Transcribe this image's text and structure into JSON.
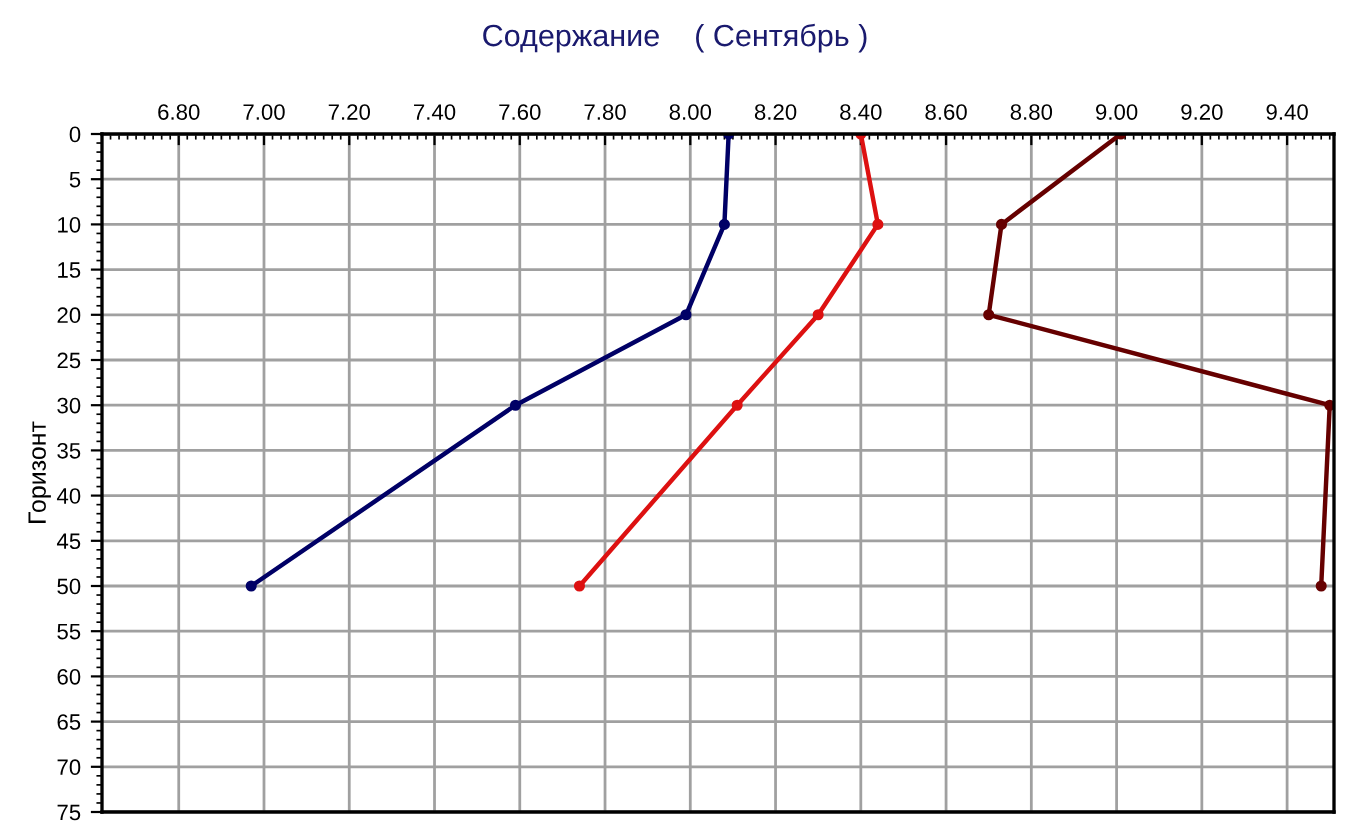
{
  "chart_data": {
    "type": "line",
    "title": "Содержание    ( Сентябрь )",
    "ylabel": "Горизонт",
    "series": [
      {
        "color": "#000066",
        "x": [
          8.09,
          8.08,
          7.99,
          7.59,
          6.97
        ],
        "values": [
          0,
          10,
          20,
          30,
          50
        ]
      },
      {
        "color": "#dd1111",
        "x": [
          8.4,
          8.44,
          8.3,
          8.11,
          7.74
        ],
        "values": [
          0,
          10,
          20,
          30,
          50
        ]
      },
      {
        "color": "#660000",
        "x": [
          9.01,
          8.73,
          8.7,
          9.5,
          9.48
        ],
        "values": [
          0,
          10,
          20,
          30,
          50
        ]
      }
    ],
    "xlim": [
      6.62,
      9.51
    ],
    "xticks": [
      {
        "value": 6.8,
        "label": "6.80"
      },
      {
        "value": 7.0,
        "label": "7.00"
      },
      {
        "value": 7.2,
        "label": "7.20"
      },
      {
        "value": 7.4,
        "label": "7.40"
      },
      {
        "value": 7.6,
        "label": "7.60"
      },
      {
        "value": 7.8,
        "label": "7.80"
      },
      {
        "value": 8.0,
        "label": "8.00"
      },
      {
        "value": 8.2,
        "label": "8.20"
      },
      {
        "value": 8.4,
        "label": "8.40"
      },
      {
        "value": 8.6,
        "label": "8.60"
      },
      {
        "value": 8.8,
        "label": "8.80"
      },
      {
        "value": 9.0,
        "label": "9.00"
      },
      {
        "value": 9.2,
        "label": "9.20"
      },
      {
        "value": 9.4,
        "label": "9.40"
      }
    ],
    "ylim": [
      75,
      0
    ],
    "yticks": [
      0,
      5,
      10,
      15,
      20,
      25,
      30,
      35,
      40,
      45,
      50,
      55,
      60,
      65,
      70,
      75
    ],
    "grid": true,
    "marker": "circle",
    "line_style": "solid"
  }
}
